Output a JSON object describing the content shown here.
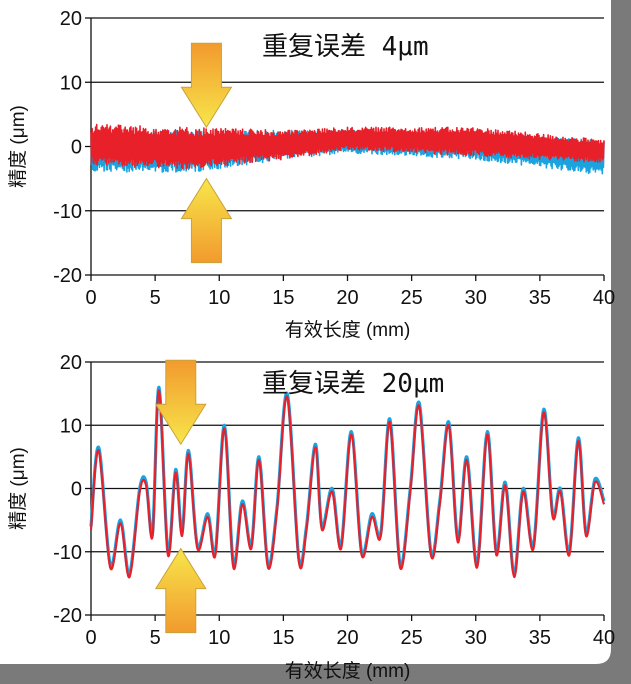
{
  "colors": {
    "series_a": "#1ba3e0",
    "series_b": "#e8202a",
    "arrow_top": "#f7e64a",
    "arrow_bottom": "#f29a2e",
    "frame": "#7a7a7a"
  },
  "chart_data": [
    {
      "type": "line",
      "title": "",
      "annotation": "重复误差 4μm",
      "xlabel": "有效长度 (mm)",
      "ylabel": "精度 (μm)",
      "xlim": [
        0,
        40
      ],
      "ylim": [
        -20,
        20
      ],
      "xticks": [
        0,
        5,
        10,
        15,
        20,
        25,
        30,
        35,
        40
      ],
      "yticks": [
        20,
        10,
        0,
        -10,
        -20
      ],
      "grid": "horizontal",
      "arrows_x": 9,
      "series": [
        {
          "color": "#1ba3e0",
          "envelope_upper": [
            [
              0,
              2.5
            ],
            [
              8,
              2.5
            ],
            [
              15,
              2.5
            ],
            [
              20,
              2.5
            ],
            [
              30,
              2
            ],
            [
              40,
              1
            ]
          ],
          "envelope_lower": [
            [
              0,
              -4
            ],
            [
              8,
              -4
            ],
            [
              15,
              -2
            ],
            [
              20,
              -1
            ],
            [
              30,
              -2
            ],
            [
              40,
              -4.5
            ]
          ]
        },
        {
          "color": "#e8202a",
          "envelope_upper": [
            [
              0,
              3.5
            ],
            [
              8,
              3
            ],
            [
              15,
              2.5
            ],
            [
              20,
              3
            ],
            [
              30,
              3
            ],
            [
              40,
              1
            ]
          ],
          "envelope_lower": [
            [
              0,
              -3
            ],
            [
              8,
              -3.5
            ],
            [
              15,
              -2
            ],
            [
              20,
              -0.5
            ],
            [
              30,
              -1.5
            ],
            [
              40,
              -2.5
            ]
          ]
        }
      ]
    },
    {
      "type": "line",
      "title": "",
      "annotation": "重复误差 20μm",
      "xlabel": "有效长度 (mm)",
      "ylabel": "精度 (μm)",
      "xlim": [
        0,
        40
      ],
      "ylim": [
        -20,
        20
      ],
      "xticks": [
        0,
        5,
        10,
        15,
        20,
        25,
        30,
        35,
        40
      ],
      "yticks": [
        20,
        10,
        0,
        -10,
        -20
      ],
      "grid": "horizontal",
      "arrows_x": 7,
      "series": [
        {
          "color": "#1ba3e0",
          "x": [
            0,
            0.6,
            1.5,
            2.3,
            3,
            3.8,
            4.3,
            4.8,
            5.3,
            6,
            6.6,
            7.1,
            7.6,
            8.3,
            9.1,
            9.7,
            10.4,
            11.1,
            11.8,
            12.5,
            13.1,
            13.8,
            14.5,
            15.3,
            16.2,
            16.8,
            17.5,
            18,
            18.8,
            19.5,
            20.3,
            21.1,
            21.9,
            22.6,
            23.3,
            24.1,
            24.9,
            25.6,
            26.5,
            27.2,
            27.9,
            28.6,
            29.3,
            30.1,
            30.9,
            31.6,
            32.3,
            33,
            33.7,
            34.5,
            35.3,
            36,
            36.6,
            37.3,
            38,
            38.6,
            39.3,
            40
          ],
          "y": [
            -6,
            6.5,
            -12,
            -5,
            -13.5,
            0,
            1,
            -7,
            16,
            -10,
            3,
            -7,
            6,
            -9,
            -4,
            -10,
            10,
            -12,
            -2,
            -9,
            5,
            -12,
            -3,
            15,
            -11,
            -6,
            7,
            -6,
            0,
            -9,
            9,
            -10,
            -4,
            -7,
            11,
            -12,
            0,
            13.5,
            -10,
            -2,
            10.5,
            -8,
            5,
            -12,
            9,
            -10,
            1,
            -13.5,
            0,
            -9,
            12.5,
            -4,
            0,
            -10,
            8,
            -7,
            1.5,
            -2
          ]
        },
        {
          "color": "#e8202a",
          "x": [
            0,
            0.6,
            1.5,
            2.3,
            3,
            3.8,
            4.3,
            4.8,
            5.3,
            6,
            6.6,
            7.1,
            7.6,
            8.3,
            9.1,
            9.7,
            10.4,
            11.1,
            11.8,
            12.5,
            13.1,
            13.8,
            14.5,
            15.3,
            16.2,
            16.8,
            17.5,
            18,
            18.8,
            19.5,
            20.3,
            21.1,
            21.9,
            22.6,
            23.3,
            24.1,
            24.9,
            25.6,
            26.5,
            27.2,
            27.9,
            28.6,
            29.3,
            30.1,
            30.9,
            31.6,
            32.3,
            33,
            33.7,
            34.5,
            35.3,
            36,
            36.6,
            37.3,
            38,
            38.6,
            39.3,
            40
          ],
          "y": [
            -6.5,
            6,
            -12.5,
            -5.5,
            -14,
            -0.5,
            0.5,
            -7.5,
            15.5,
            -10.5,
            2.5,
            -7.5,
            5.5,
            -9.5,
            -4.5,
            -10.5,
            9.5,
            -12.5,
            -2.5,
            -9.5,
            4.5,
            -12.5,
            -3.5,
            14.5,
            -11.5,
            -6.5,
            6.5,
            -6.5,
            -0.5,
            -9.5,
            8.5,
            -10.5,
            -4.5,
            -7.5,
            10.5,
            -12.5,
            -0.5,
            13,
            -10.5,
            -2.5,
            10,
            -8.5,
            4.5,
            -12.5,
            8.5,
            -10.5,
            0.5,
            -14,
            -0.5,
            -9.5,
            12,
            -4.5,
            -0.5,
            -10.5,
            7.5,
            -7.5,
            1,
            -2.5
          ]
        }
      ]
    }
  ]
}
